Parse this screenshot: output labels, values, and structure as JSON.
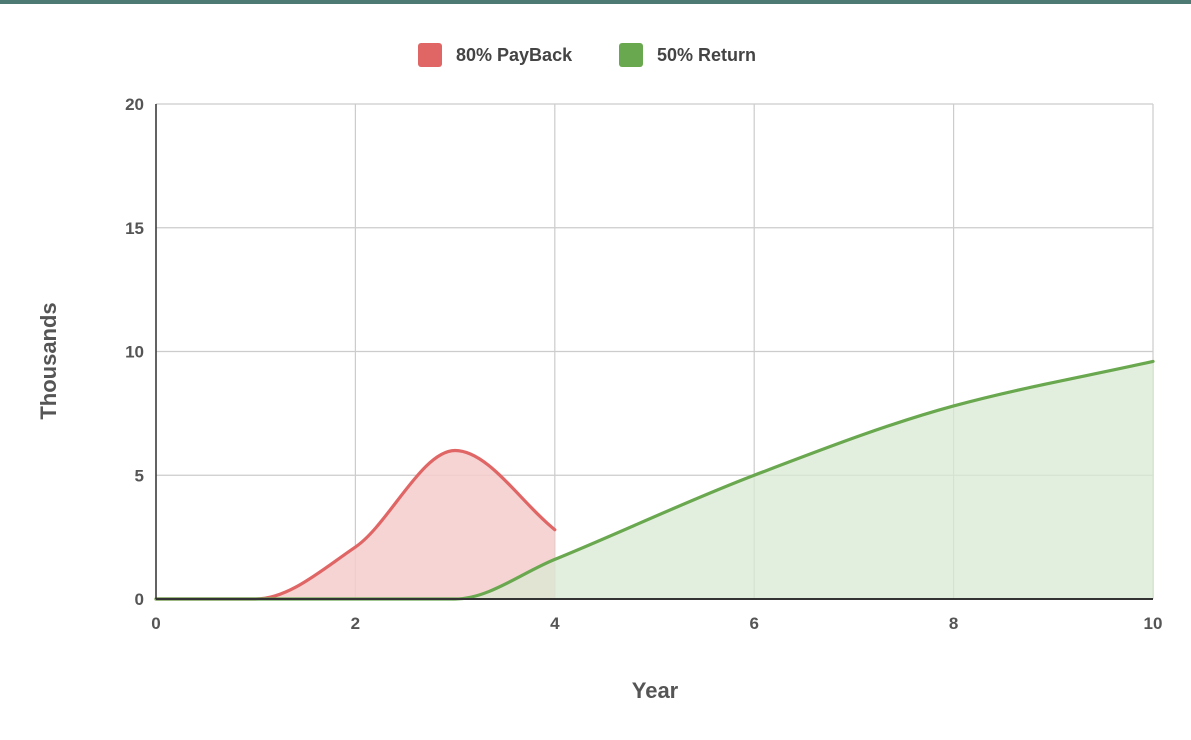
{
  "chart_data": {
    "type": "area",
    "xlabel": "Year",
    "ylabel": "Thousands",
    "xlim": [
      0,
      10
    ],
    "ylim": [
      0,
      20
    ],
    "x_ticks": [
      "0",
      "2",
      "4",
      "6",
      "8",
      "10"
    ],
    "y_ticks": [
      "0",
      "5",
      "10",
      "15",
      "20"
    ],
    "grid": true,
    "legend_position": "top-center",
    "series": [
      {
        "name": "80% PayBack",
        "color": "#e06666",
        "fill": "#f4cccc",
        "x": [
          0,
          1,
          2,
          3,
          4
        ],
        "values": [
          0,
          0,
          2.1,
          6.0,
          2.8
        ]
      },
      {
        "name": "50% Return",
        "color": "#6aa84f",
        "fill": "#d9ead3",
        "x": [
          0,
          1,
          2,
          3,
          4,
          6,
          8,
          10
        ],
        "values": [
          0,
          0,
          0,
          0,
          1.6,
          5.0,
          7.8,
          9.6
        ]
      }
    ]
  }
}
